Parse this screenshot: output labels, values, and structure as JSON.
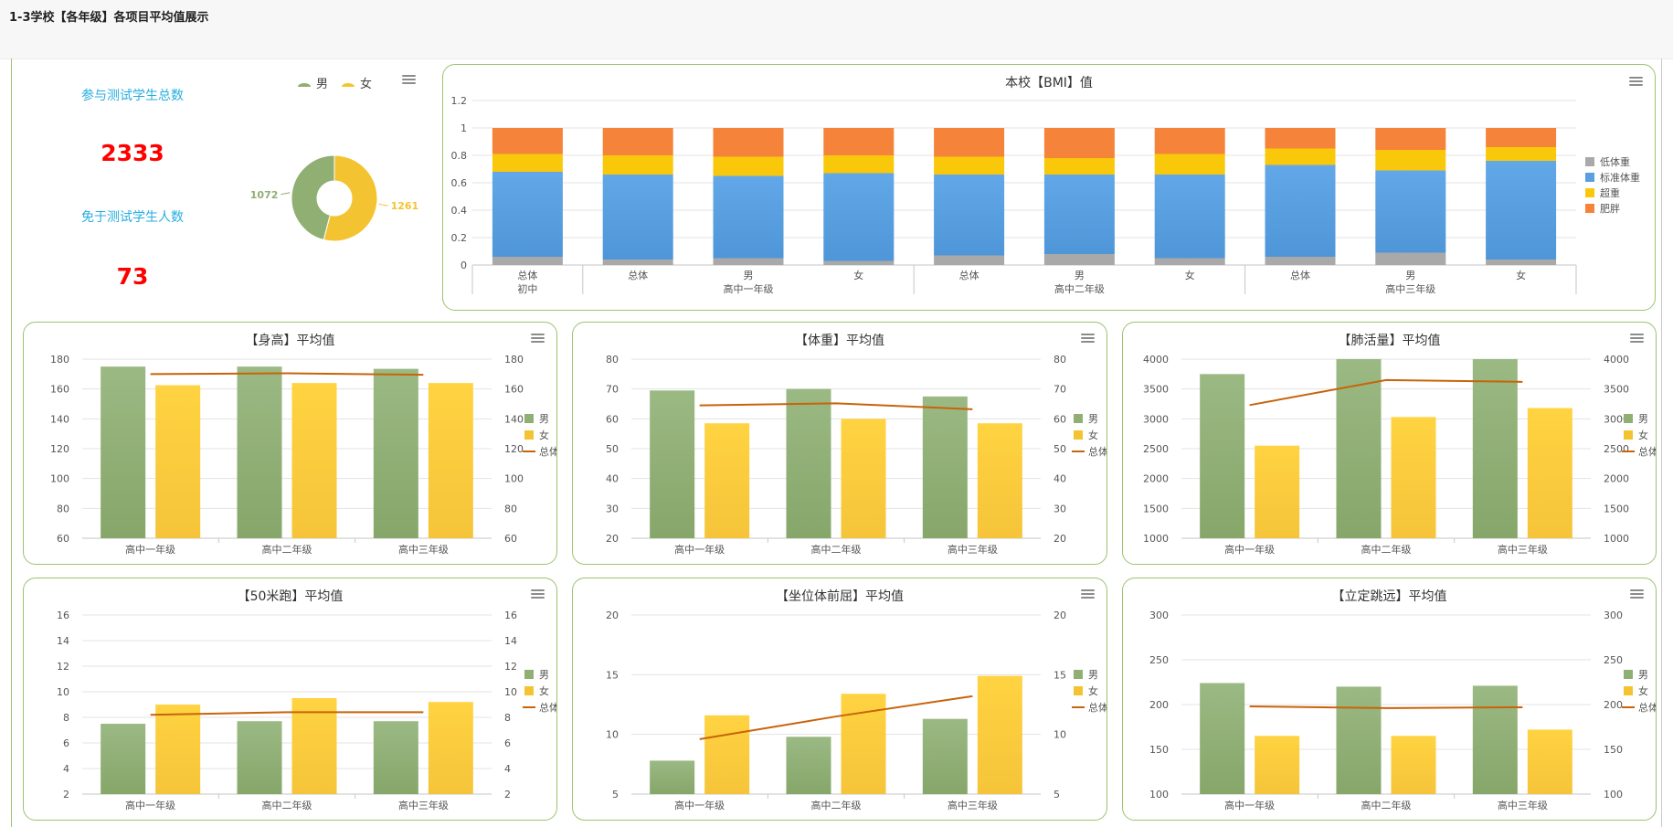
{
  "page": {
    "title": "1-3学校【各年级】各项目平均值展示"
  },
  "summary": {
    "participants_label": "参与测试学生总数",
    "participants_value": "2333",
    "exempt_label": "免于测试学生人数",
    "exempt_value": "73"
  },
  "colors": {
    "male": "#8faf73",
    "female": "#f4c332",
    "total_line": "#c8640a",
    "underweight": "#a9a9a9",
    "normal": "#5aa0e0",
    "overweight": "#f9c80b",
    "obese": "#f5833a",
    "border": "#9ac46d"
  },
  "icons": {
    "menu": "hamburger-menu-icon"
  },
  "chart_data": [
    {
      "id": "gender",
      "type": "pie",
      "donut": true,
      "title": "",
      "legend": [
        "男",
        "女"
      ],
      "slices": [
        {
          "name": "男",
          "value": 1072,
          "color": "#8faf73"
        },
        {
          "name": "女",
          "value": 1261,
          "color": "#f4c332"
        }
      ],
      "legend_position": "top"
    },
    {
      "id": "bmi",
      "type": "bar",
      "stacked": true,
      "title": "本校【BMI】值",
      "ylim": [
        0,
        1.2
      ],
      "yticks": [
        0,
        0.2,
        0.4,
        0.6,
        0.8,
        1,
        1.2
      ],
      "categories": [
        "总体",
        "总体",
        "男",
        "女",
        "总体",
        "男",
        "女",
        "总体",
        "男",
        "女"
      ],
      "groups": [
        {
          "label": "初中",
          "count": 1
        },
        {
          "label": "高中一年级",
          "count": 3
        },
        {
          "label": "高中二年级",
          "count": 3
        },
        {
          "label": "高中三年级",
          "count": 3
        }
      ],
      "series": [
        {
          "name": "低体重",
          "color": "#a9a9a9",
          "values": [
            0.06,
            0.04,
            0.05,
            0.03,
            0.07,
            0.08,
            0.05,
            0.06,
            0.09,
            0.04
          ]
        },
        {
          "name": "标准体重",
          "color": "#5aa0e0",
          "values": [
            0.62,
            0.62,
            0.6,
            0.64,
            0.59,
            0.58,
            0.61,
            0.67,
            0.6,
            0.72
          ]
        },
        {
          "name": "超重",
          "color": "#f9c80b",
          "values": [
            0.13,
            0.14,
            0.14,
            0.13,
            0.13,
            0.12,
            0.15,
            0.12,
            0.15,
            0.1
          ]
        },
        {
          "name": "肥胖",
          "color": "#f5833a",
          "values": [
            0.19,
            0.2,
            0.21,
            0.2,
            0.21,
            0.22,
            0.19,
            0.15,
            0.16,
            0.14
          ]
        }
      ],
      "legend_position": "right"
    },
    {
      "id": "height",
      "type": "bar",
      "title": "【身高】平均值",
      "categories": [
        "高中一年级",
        "高中二年级",
        "高中三年级"
      ],
      "ylim": [
        60,
        180
      ],
      "yticks": [
        60,
        80,
        100,
        120,
        140,
        160,
        180
      ],
      "series": [
        {
          "name": "男",
          "values": [
            175,
            175,
            173.5
          ]
        },
        {
          "name": "女",
          "values": [
            162.5,
            164,
            164
          ]
        },
        {
          "name": "总体",
          "type": "line",
          "values": [
            170,
            170.5,
            169.5
          ]
        }
      ],
      "legend_position": "right"
    },
    {
      "id": "weight",
      "type": "bar",
      "title": "【体重】平均值",
      "categories": [
        "高中一年级",
        "高中二年级",
        "高中三年级"
      ],
      "ylim": [
        20,
        80
      ],
      "yticks": [
        20,
        30,
        40,
        50,
        60,
        70,
        80
      ],
      "series": [
        {
          "name": "男",
          "values": [
            69.5,
            70,
            67.5
          ]
        },
        {
          "name": "女",
          "values": [
            58.5,
            60,
            58.5
          ]
        },
        {
          "name": "总体",
          "type": "line",
          "values": [
            64.5,
            65.2,
            63.2
          ]
        }
      ],
      "legend_position": "right"
    },
    {
      "id": "lung",
      "type": "bar",
      "title": "【肺活量】平均值",
      "categories": [
        "高中一年级",
        "高中二年级",
        "高中三年级"
      ],
      "ylim": [
        1000,
        4000
      ],
      "yticks": [
        1000,
        1500,
        2000,
        2500,
        3000,
        3500,
        4000
      ],
      "series": [
        {
          "name": "男",
          "values": [
            3750,
            4000,
            4000
          ]
        },
        {
          "name": "女",
          "values": [
            2550,
            3030,
            3180
          ]
        },
        {
          "name": "总体",
          "type": "line",
          "values": [
            3230,
            3650,
            3620
          ]
        }
      ],
      "legend_position": "right"
    },
    {
      "id": "run50",
      "type": "bar",
      "title": "【50米跑】平均值",
      "categories": [
        "高中一年级",
        "高中二年级",
        "高中三年级"
      ],
      "ylim": [
        2,
        16
      ],
      "yticks": [
        2,
        4,
        6,
        8,
        10,
        12,
        14,
        16
      ],
      "series": [
        {
          "name": "男",
          "values": [
            7.5,
            7.7,
            7.7
          ]
        },
        {
          "name": "女",
          "values": [
            9.0,
            9.5,
            9.2
          ]
        },
        {
          "name": "总体",
          "type": "line",
          "values": [
            8.2,
            8.4,
            8.4
          ]
        }
      ],
      "legend_position": "right"
    },
    {
      "id": "sitreach",
      "type": "bar",
      "title": "【坐位体前屈】平均值",
      "categories": [
        "高中一年级",
        "高中二年级",
        "高中三年级"
      ],
      "ylim": [
        5,
        20
      ],
      "yticks": [
        5,
        10,
        15,
        20
      ],
      "series": [
        {
          "name": "男",
          "values": [
            7.8,
            9.8,
            11.3
          ]
        },
        {
          "name": "女",
          "values": [
            11.6,
            13.4,
            14.9
          ]
        },
        {
          "name": "总体",
          "type": "line",
          "values": [
            9.6,
            11.5,
            13.2
          ]
        }
      ],
      "legend_position": "right"
    },
    {
      "id": "jump",
      "type": "bar",
      "title": "【立定跳远】平均值",
      "categories": [
        "高中一年级",
        "高中二年级",
        "高中三年级"
      ],
      "ylim": [
        100,
        300
      ],
      "yticks": [
        100,
        150,
        200,
        250,
        300
      ],
      "series": [
        {
          "name": "男",
          "values": [
            224,
            220,
            221
          ]
        },
        {
          "name": "女",
          "values": [
            165,
            165,
            172
          ]
        },
        {
          "name": "总体",
          "type": "line",
          "values": [
            198,
            196,
            197
          ]
        }
      ],
      "legend_position": "right"
    }
  ]
}
